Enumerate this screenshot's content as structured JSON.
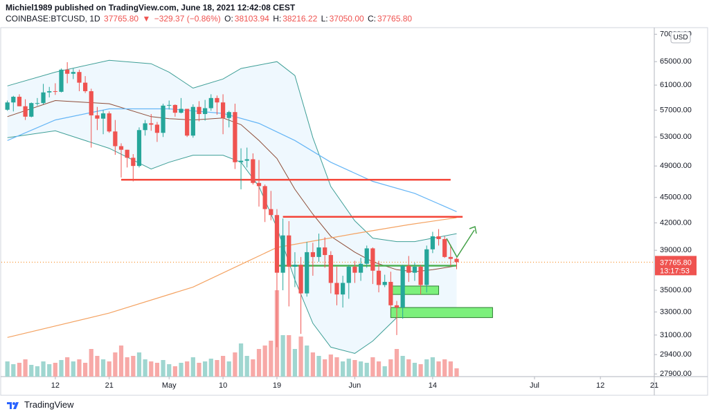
{
  "header": {
    "published": "Michiel1989 published on TradingView.com, June 18, 2021 12:42:08 CEST",
    "symbol": "COINBASE:BTCUSD, 1D",
    "price": "37765.80",
    "arrow": "▼",
    "change": "−329.37 (−0.86%)",
    "o_label": "O:",
    "o": "38103.94",
    "h_label": "H:",
    "h": "38216.22",
    "l_label": "L:",
    "l": "37050.00",
    "c_label": "C:",
    "c": "37765.80"
  },
  "footer": {
    "brand": "TradingView"
  },
  "chart_data": {
    "type": "candlestick",
    "log_scale": true,
    "x": [
      "2021-04-04",
      "2021-04-05",
      "2021-04-06",
      "2021-04-07",
      "2021-04-08",
      "2021-04-09",
      "2021-04-10",
      "2021-04-11",
      "2021-04-12",
      "2021-04-13",
      "2021-04-14",
      "2021-04-15",
      "2021-04-16",
      "2021-04-17",
      "2021-04-18",
      "2021-04-19",
      "2021-04-20",
      "2021-04-21",
      "2021-04-22",
      "2021-04-23",
      "2021-04-24",
      "2021-04-25",
      "2021-04-26",
      "2021-04-27",
      "2021-04-28",
      "2021-04-29",
      "2021-04-30",
      "2021-05-01",
      "2021-05-02",
      "2021-05-03",
      "2021-05-04",
      "2021-05-05",
      "2021-05-06",
      "2021-05-07",
      "2021-05-08",
      "2021-05-09",
      "2021-05-10",
      "2021-05-11",
      "2021-05-12",
      "2021-05-13",
      "2021-05-14",
      "2021-05-15",
      "2021-05-16",
      "2021-05-17",
      "2021-05-18",
      "2021-05-19",
      "2021-05-20",
      "2021-05-21",
      "2021-05-22",
      "2021-05-23",
      "2021-05-24",
      "2021-05-25",
      "2021-05-26",
      "2021-05-27",
      "2021-05-28",
      "2021-05-29",
      "2021-05-30",
      "2021-05-31",
      "2021-06-01",
      "2021-06-02",
      "2021-06-03",
      "2021-06-04",
      "2021-06-05",
      "2021-06-06",
      "2021-06-07",
      "2021-06-08",
      "2021-06-09",
      "2021-06-10",
      "2021-06-11",
      "2021-06-12",
      "2021-06-13",
      "2021-06-14",
      "2021-06-15",
      "2021-06-16",
      "2021-06-17",
      "2021-06-18"
    ],
    "open": [
      57060,
      58200,
      59100,
      57600,
      56000,
      58100,
      58100,
      59800,
      60000,
      59900,
      63600,
      62900,
      63200,
      61400,
      60000,
      56200,
      55700,
      56500,
      53800,
      51700,
      51200,
      50100,
      49000,
      54000,
      55000,
      54800,
      53600,
      57700,
      57800,
      56600,
      57200,
      53200,
      57500,
      56400,
      57300,
      58900,
      58200,
      55800,
      56700,
      49500,
      49700,
      49900,
      46800,
      46400,
      43600,
      42900,
      36700,
      40600,
      37300,
      37500,
      34700,
      38800,
      38300,
      39300,
      38500,
      35700,
      34600,
      35700,
      37300,
      36700,
      37600,
      39200,
      36900,
      35500,
      35800,
      33600,
      33400,
      37400,
      36700,
      37300,
      35500,
      39100,
      40500,
      40200,
      38300,
      38103.94
    ],
    "high": [
      58500,
      59250,
      59500,
      58700,
      58200,
      58900,
      61200,
      60700,
      61300,
      63800,
      64900,
      63800,
      63600,
      62500,
      60400,
      57500,
      57000,
      56800,
      55500,
      52100,
      51200,
      50600,
      54400,
      55500,
      56400,
      55200,
      58000,
      58500,
      57900,
      58900,
      57200,
      57900,
      58400,
      58600,
      59500,
      59300,
      59500,
      56900,
      58000,
      51400,
      51500,
      50700,
      49800,
      46600,
      45800,
      43600,
      42500,
      42200,
      38800,
      38300,
      39900,
      39800,
      40800,
      40400,
      38900,
      37300,
      36400,
      37500,
      37900,
      38200,
      39500,
      39300,
      37900,
      36500,
      36800,
      34000,
      37500,
      38400,
      37700,
      37500,
      39500,
      41000,
      41300,
      40500,
      39600,
      38216.22
    ],
    "low": [
      56900,
      56800,
      57600,
      55500,
      55900,
      57700,
      57900,
      59000,
      59400,
      59800,
      61300,
      62000,
      60000,
      59700,
      51500,
      54000,
      53400,
      53600,
      50500,
      47500,
      48800,
      47000,
      48800,
      53200,
      53900,
      52300,
      53000,
      57100,
      56000,
      56500,
      53000,
      52900,
      55300,
      55400,
      56900,
      56300,
      53400,
      54400,
      48600,
      46000,
      48800,
      46600,
      43900,
      42100,
      42300,
      30000,
      35000,
      33500,
      35300,
      31100,
      34400,
      36400,
      37800,
      37200,
      34700,
      33600,
      33400,
      34200,
      35700,
      35900,
      37200,
      35600,
      34800,
      35300,
      33300,
      31000,
      32400,
      35800,
      35900,
      34600,
      34800,
      38700,
      39500,
      38200,
      37400,
      37050
    ],
    "close": [
      58200,
      59100,
      57600,
      56000,
      58100,
      58100,
      59800,
      60000,
      59900,
      63600,
      62900,
      63200,
      61400,
      60000,
      56200,
      55700,
      56500,
      53800,
      51700,
      51200,
      50100,
      49000,
      54000,
      55000,
      54800,
      53600,
      57700,
      57800,
      56600,
      57200,
      53200,
      57500,
      56400,
      57300,
      58900,
      58200,
      55800,
      56700,
      49500,
      49700,
      49900,
      46800,
      46400,
      43600,
      42900,
      36700,
      40600,
      37300,
      37500,
      34700,
      38800,
      38300,
      39300,
      38500,
      35700,
      34600,
      35700,
      37300,
      36700,
      37600,
      39200,
      36900,
      35500,
      35800,
      33600,
      33400,
      37400,
      36700,
      37300,
      35500,
      39100,
      40500,
      40200,
      38300,
      38100,
      37765.8
    ],
    "volume": [
      22000,
      18000,
      20000,
      25000,
      17000,
      15000,
      22000,
      18000,
      20000,
      24000,
      28000,
      22000,
      25000,
      20000,
      40000,
      30000,
      25000,
      22000,
      35000,
      45000,
      28000,
      30000,
      35000,
      25000,
      22000,
      20000,
      24000,
      18000,
      15000,
      20000,
      22000,
      28000,
      20000,
      22000,
      26000,
      24000,
      30000,
      22000,
      35000,
      48000,
      30000,
      25000,
      40000,
      45000,
      52000,
      125000,
      60000,
      60000,
      40000,
      58000,
      45000,
      35000,
      30000,
      25000,
      32000,
      28000,
      22000,
      26000,
      24000,
      22000,
      20000,
      28000,
      22000,
      15000,
      25000,
      40000,
      30000,
      25000,
      20000,
      18000,
      25000,
      28000,
      22000,
      25000,
      22000,
      12000
    ],
    "up_color": "#26a69a",
    "down_color": "#ef5350",
    "volume_up_color": "#9fd6d0",
    "volume_down_color": "#f7a9a7",
    "bollinger": {
      "x": [
        "2021-04-04",
        "2021-04-12",
        "2021-04-21",
        "2021-04-28",
        "2021-05-01",
        "2021-05-05",
        "2021-05-10",
        "2021-05-13",
        "2021-05-16",
        "2021-05-19",
        "2021-05-22",
        "2021-05-25",
        "2021-05-28",
        "2021-06-01",
        "2021-06-04",
        "2021-06-08",
        "2021-06-11",
        "2021-06-14",
        "2021-06-18"
      ],
      "upper": [
        60870,
        63180,
        65245,
        64630,
        63180,
        60500,
        62020,
        63800,
        64400,
        65000,
        62600,
        52900,
        46350,
        42240,
        40300,
        39930,
        39930,
        40300,
        40800
      ],
      "lower": [
        52900,
        53900,
        51400,
        48600,
        49500,
        50450,
        50450,
        49500,
        46350,
        41450,
        36000,
        32000,
        30000,
        29500,
        30500,
        32500,
        33000,
        33200,
        33300
      ],
      "basis": [
        56000,
        58500,
        58000,
        56000,
        55700,
        55500,
        55800,
        54800,
        52500,
        50000,
        46000,
        43000,
        40500,
        38800,
        37800,
        37000,
        36800,
        37000,
        37400
      ],
      "line_color": "#3d9e96",
      "basis_color": "#8d4b36",
      "fill_color": "rgba(33,150,243,0.07)"
    },
    "averages": [
      {
        "color": "#64b5f6",
        "x": [
          "2021-04-04",
          "2021-04-12",
          "2021-04-21",
          "2021-05-01",
          "2021-05-10",
          "2021-05-16",
          "2021-05-22",
          "2021-05-28",
          "2021-06-04",
          "2021-06-11",
          "2021-06-18"
        ],
        "values": [
          52500,
          55500,
          57200,
          57200,
          56500,
          55000,
          52500,
          49500,
          47000,
          45500,
          43300
        ]
      },
      {
        "color": "#f4a261",
        "x": [
          "2021-04-04",
          "2021-04-21",
          "2021-05-05",
          "2021-05-19",
          "2021-06-01",
          "2021-06-10",
          "2021-06-18"
        ],
        "values": [
          30800,
          32900,
          35300,
          39300,
          40800,
          41800,
          42600
        ]
      }
    ],
    "drawings": [
      {
        "type": "hline",
        "value": 47200,
        "from": "2021-04-23",
        "to": "2021-06-17",
        "color": "#f44336"
      },
      {
        "type": "hline",
        "value": 42700,
        "from": "2021-05-20",
        "to": "2021-06-19",
        "color": "#f44336"
      },
      {
        "type": "hline",
        "value": 37400,
        "from": "2021-05-19",
        "to": "2021-06-18",
        "color": "#4caf50"
      },
      {
        "type": "box",
        "top": 35400,
        "bottom": 34600,
        "from": "2021-06-07",
        "to": "2021-06-15",
        "color": "#7cf07c"
      },
      {
        "type": "box",
        "top": 33400,
        "bottom": 32500,
        "from": "2021-06-07",
        "to": "2021-06-24",
        "color": "#7cf07c"
      }
    ],
    "last_price": {
      "value": 37765.8,
      "label": "37765.80"
    },
    "countdown": "13:17:53",
    "currency": "USD",
    "xlim": [
      "2021-04-03",
      "2021-07-21"
    ],
    "xticks": [
      {
        "value": "2021-04-12",
        "label": "12"
      },
      {
        "value": "2021-04-21",
        "label": "21"
      },
      {
        "value": "2021-05-01",
        "label": "May"
      },
      {
        "value": "2021-05-10",
        "label": "10"
      },
      {
        "value": "2021-05-19",
        "label": "19"
      },
      {
        "value": "2021-06-01",
        "label": "Jun"
      },
      {
        "value": "2021-06-14",
        "label": "14"
      },
      {
        "value": "2021-07-01",
        "label": "Jul"
      },
      {
        "value": "2021-07-12",
        "label": "12"
      },
      {
        "value": "2021-07-21",
        "label": "21"
      }
    ],
    "ylim": [
      27700,
      71000
    ],
    "yticks": [
      {
        "value": 70000,
        "label": "70000.00"
      },
      {
        "value": 65000,
        "label": "65000.00"
      },
      {
        "value": 61000,
        "label": "61000.00"
      },
      {
        "value": 57000,
        "label": "57000.00"
      },
      {
        "value": 53000,
        "label": "53000.00"
      },
      {
        "value": 49000,
        "label": "49000.00"
      },
      {
        "value": 45000,
        "label": "45000.00"
      },
      {
        "value": 42000,
        "label": "42000.00"
      },
      {
        "value": 39000,
        "label": "39000.00"
      },
      {
        "value": 35000,
        "label": "35000.00"
      },
      {
        "value": 33000,
        "label": "33000.00"
      },
      {
        "value": 31000,
        "label": "31000.00"
      },
      {
        "value": 29400,
        "label": "29400.00"
      },
      {
        "value": 27900,
        "label": "27900.00"
      }
    ]
  }
}
